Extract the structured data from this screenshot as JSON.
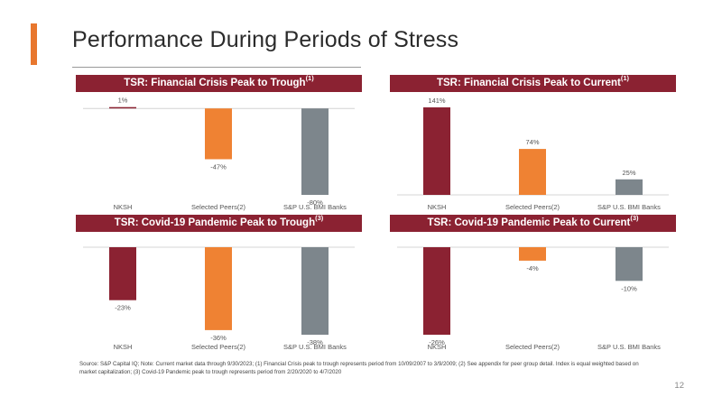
{
  "page": {
    "title": "Performance During Periods of Stress",
    "page_number": "12",
    "footnote": "Source: S&P Capital IQ; Note: Current market data through 9/30/2023; (1) Financial Crisis peak to trough represents period from 10/09/2007 to 3/9/2009; (2) See appendix for peer group detail. Index is equal weighted based on market capitalization; (3) Covid-19 Pandemic peak to trough represents period from 2/20/2020 to 4/7/2020"
  },
  "colors": {
    "accent": "#e8772e",
    "header": "#8b2232",
    "nksh": "#8b2232",
    "peers": "#ef8233",
    "index": "#7d868c"
  },
  "chart_data": [
    {
      "type": "bar",
      "title": "TSR: Financial Crisis Peak to Trough",
      "title_note": "(1)",
      "categories": [
        "NKSH",
        "Selected Peers(2)",
        "S&P U.S. BMI Banks"
      ],
      "values": [
        1,
        -47,
        -80
      ],
      "labels": [
        "1%",
        "-47%",
        "-80%"
      ],
      "ylim": [
        -80,
        1
      ]
    },
    {
      "type": "bar",
      "title": "TSR: Financial Crisis Peak to Current",
      "title_note": "(1)",
      "categories": [
        "NKSH",
        "Selected Peers(2)",
        "S&P U.S. BMI Banks"
      ],
      "values": [
        141,
        74,
        25
      ],
      "labels": [
        "141%",
        "74%",
        "25%"
      ],
      "ylim": [
        0,
        141
      ]
    },
    {
      "type": "bar",
      "title": "TSR: Covid-19 Pandemic Peak to Trough",
      "title_note": "(3)",
      "categories": [
        "NKSH",
        "Selected Peers(2)",
        "S&P U.S. BMI Banks"
      ],
      "values": [
        -23,
        -36,
        -38
      ],
      "labels": [
        "-23%",
        "-36%",
        "-38%"
      ],
      "ylim": [
        -38,
        0
      ]
    },
    {
      "type": "bar",
      "title": "TSR: Covid-19 Pandemic Peak to Current",
      "title_note": "(3)",
      "categories": [
        "NKSH",
        "Selected Peers(2)",
        "S&P U.S. BMI Banks"
      ],
      "values": [
        -26,
        -4,
        -10
      ],
      "labels": [
        "-26%",
        "-4%",
        "-10%"
      ],
      "ylim": [
        -26,
        0
      ]
    }
  ]
}
